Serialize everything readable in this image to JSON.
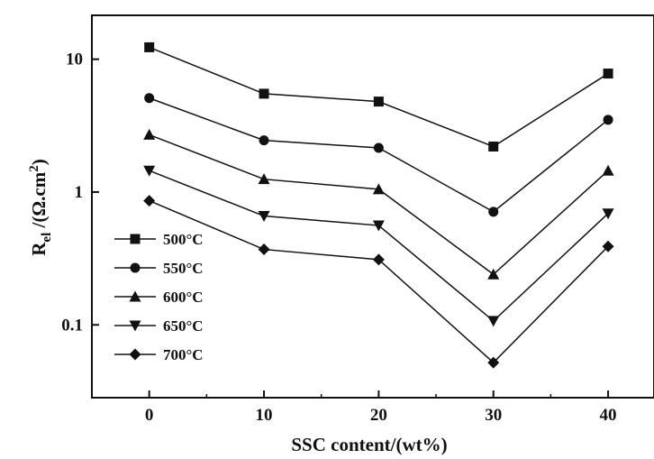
{
  "chart_data": {
    "type": "line",
    "title": "",
    "xlabel": "SSC content/(wt%)",
    "ylabel": {
      "main": "R",
      "sub": "el",
      "unit_open": " /(Ω.cm",
      "sup": "2",
      "unit_close": ")"
    },
    "x": [
      0,
      10,
      20,
      30,
      40
    ],
    "xlim": [
      -5,
      44
    ],
    "ylim": [
      0.0283,
      21.4
    ],
    "yscale": "log",
    "xticks": [
      0,
      10,
      20,
      30,
      40
    ],
    "xtick_labels": [
      "0",
      "10",
      "20",
      "30",
      "40"
    ],
    "yticks": [
      0.1,
      1,
      10
    ],
    "ytick_labels": [
      "0.1",
      "1",
      "10"
    ],
    "grid": false,
    "legend_position": "left",
    "series": [
      {
        "name": "500°C",
        "marker": "square",
        "values": [
          12.3,
          5.5,
          4.8,
          2.2,
          7.8
        ]
      },
      {
        "name": "550°C",
        "marker": "circle",
        "values": [
          5.1,
          2.45,
          2.15,
          0.71,
          3.5
        ]
      },
      {
        "name": "600°C",
        "marker": "triangle-up",
        "values": [
          2.7,
          1.25,
          1.05,
          0.24,
          1.45
        ]
      },
      {
        "name": "650°C",
        "marker": "triangle-down",
        "values": [
          1.45,
          0.66,
          0.56,
          0.107,
          0.69
        ]
      },
      {
        "name": "700°C",
        "marker": "diamond",
        "values": [
          0.86,
          0.37,
          0.31,
          0.052,
          0.39
        ]
      }
    ]
  }
}
